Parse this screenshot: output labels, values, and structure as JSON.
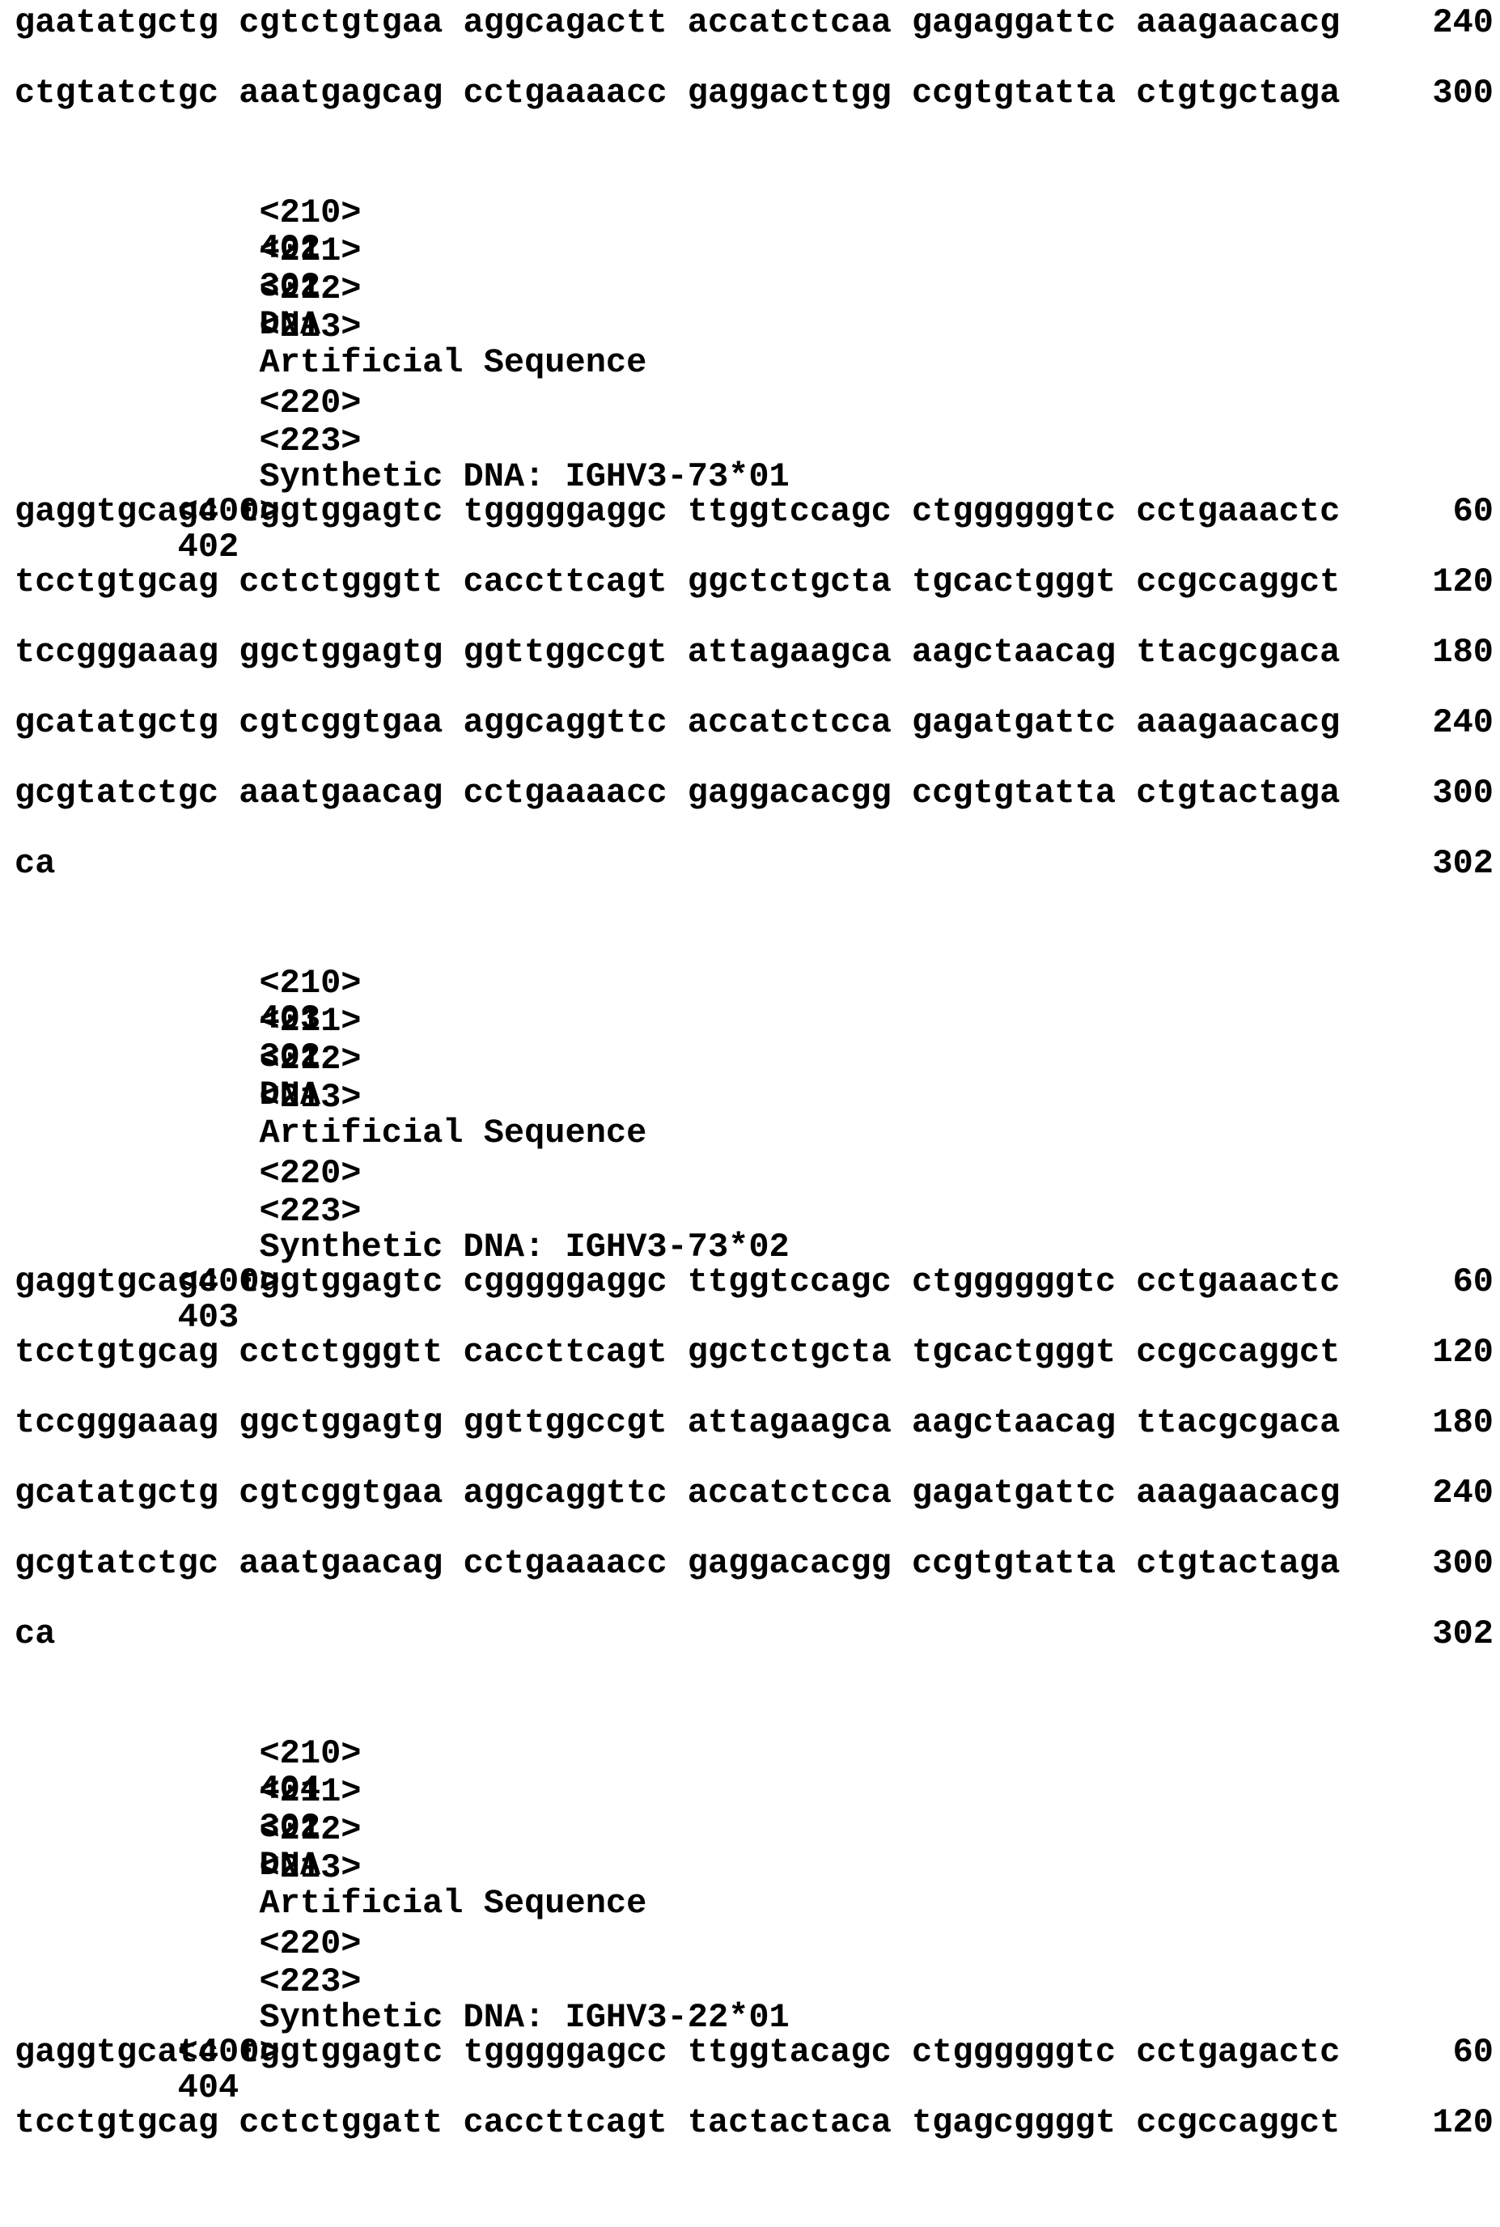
{
  "document": {
    "kind": "Patent sequence listing page",
    "header_sequence_lines": [
      {
        "seq": "gaatatgctg cgtctgtgaa aggcagactt accatctcaa gagaggattc aaagaacacg",
        "num": "240"
      },
      {
        "seq": "ctgtatctgc aaatgagcag cctgaaaacc gaggacttgg ccgtgtatta ctgtgctaga",
        "num": "300"
      }
    ],
    "entries": [
      {
        "meta": [
          {
            "tag": "<210>",
            "value": "402"
          },
          {
            "tag": "<211>",
            "value": "302"
          },
          {
            "tag": "<212>",
            "value": "DNA"
          },
          {
            "tag": "<213>",
            "value": "Artificial Sequence"
          }
        ],
        "comment": [
          {
            "tag": "<220>",
            "value": ""
          },
          {
            "tag": "<223>",
            "value": "Synthetic DNA: IGHV3-73*01"
          }
        ],
        "seq_header": {
          "tag": "<400>",
          "value": "402"
        },
        "sequence_lines": [
          {
            "seq": "gaggtgcagc tggtggagtc tgggggaggc ttggtccagc ctggggggtc cctgaaactc",
            "num": "60"
          },
          {
            "seq": "tcctgtgcag cctctgggtt caccttcagt ggctctgcta tgcactgggt ccgccaggct",
            "num": "120"
          },
          {
            "seq": "tccgggaaag ggctggagtg ggttggccgt attagaagca aagctaacag ttacgcgaca",
            "num": "180"
          },
          {
            "seq": "gcatatgctg cgtcggtgaa aggcaggttc accatctcca gagatgattc aaagaacacg",
            "num": "240"
          },
          {
            "seq": "gcgtatctgc aaatgaacag cctgaaaacc gaggacacgg ccgtgtatta ctgtactaga",
            "num": "300"
          },
          {
            "seq": "ca",
            "num": "302"
          }
        ]
      },
      {
        "meta": [
          {
            "tag": "<210>",
            "value": "403"
          },
          {
            "tag": "<211>",
            "value": "302"
          },
          {
            "tag": "<212>",
            "value": "DNA"
          },
          {
            "tag": "<213>",
            "value": "Artificial Sequence"
          }
        ],
        "comment": [
          {
            "tag": "<220>",
            "value": ""
          },
          {
            "tag": "<223>",
            "value": "Synthetic DNA: IGHV3-73*02"
          }
        ],
        "seq_header": {
          "tag": "<400>",
          "value": "403"
        },
        "sequence_lines": [
          {
            "seq": "gaggtgcagc tggtggagtc cgggggaggc ttggtccagc ctggggggtc cctgaaactc",
            "num": "60"
          },
          {
            "seq": "tcctgtgcag cctctgggtt caccttcagt ggctctgcta tgcactgggt ccgccaggct",
            "num": "120"
          },
          {
            "seq": "tccgggaaag ggctggagtg ggttggccgt attagaagca aagctaacag ttacgcgaca",
            "num": "180"
          },
          {
            "seq": "gcatatgctg cgtcggtgaa aggcaggttc accatctcca gagatgattc aaagaacacg",
            "num": "240"
          },
          {
            "seq": "gcgtatctgc aaatgaacag cctgaaaacc gaggacacgg ccgtgtatta ctgtactaga",
            "num": "300"
          },
          {
            "seq": "ca",
            "num": "302"
          }
        ]
      },
      {
        "meta": [
          {
            "tag": "<210>",
            "value": "404"
          },
          {
            "tag": "<211>",
            "value": "302"
          },
          {
            "tag": "<212>",
            "value": "DNA"
          },
          {
            "tag": "<213>",
            "value": "Artificial Sequence"
          }
        ],
        "comment": [
          {
            "tag": "<220>",
            "value": ""
          },
          {
            "tag": "<223>",
            "value": "Synthetic DNA: IGHV3-22*01"
          }
        ],
        "seq_header": {
          "tag": "<400>",
          "value": "404"
        },
        "sequence_lines": [
          {
            "seq": "gaggtgcatc tggtggagtc tgggggagcc ttggtacagc ctggggggtc cctgagactc",
            "num": "60"
          },
          {
            "seq": "tcctgtgcag cctctggatt caccttcagt tactactaca tgagcggggt ccgccaggct",
            "num": "120"
          }
        ]
      }
    ]
  }
}
